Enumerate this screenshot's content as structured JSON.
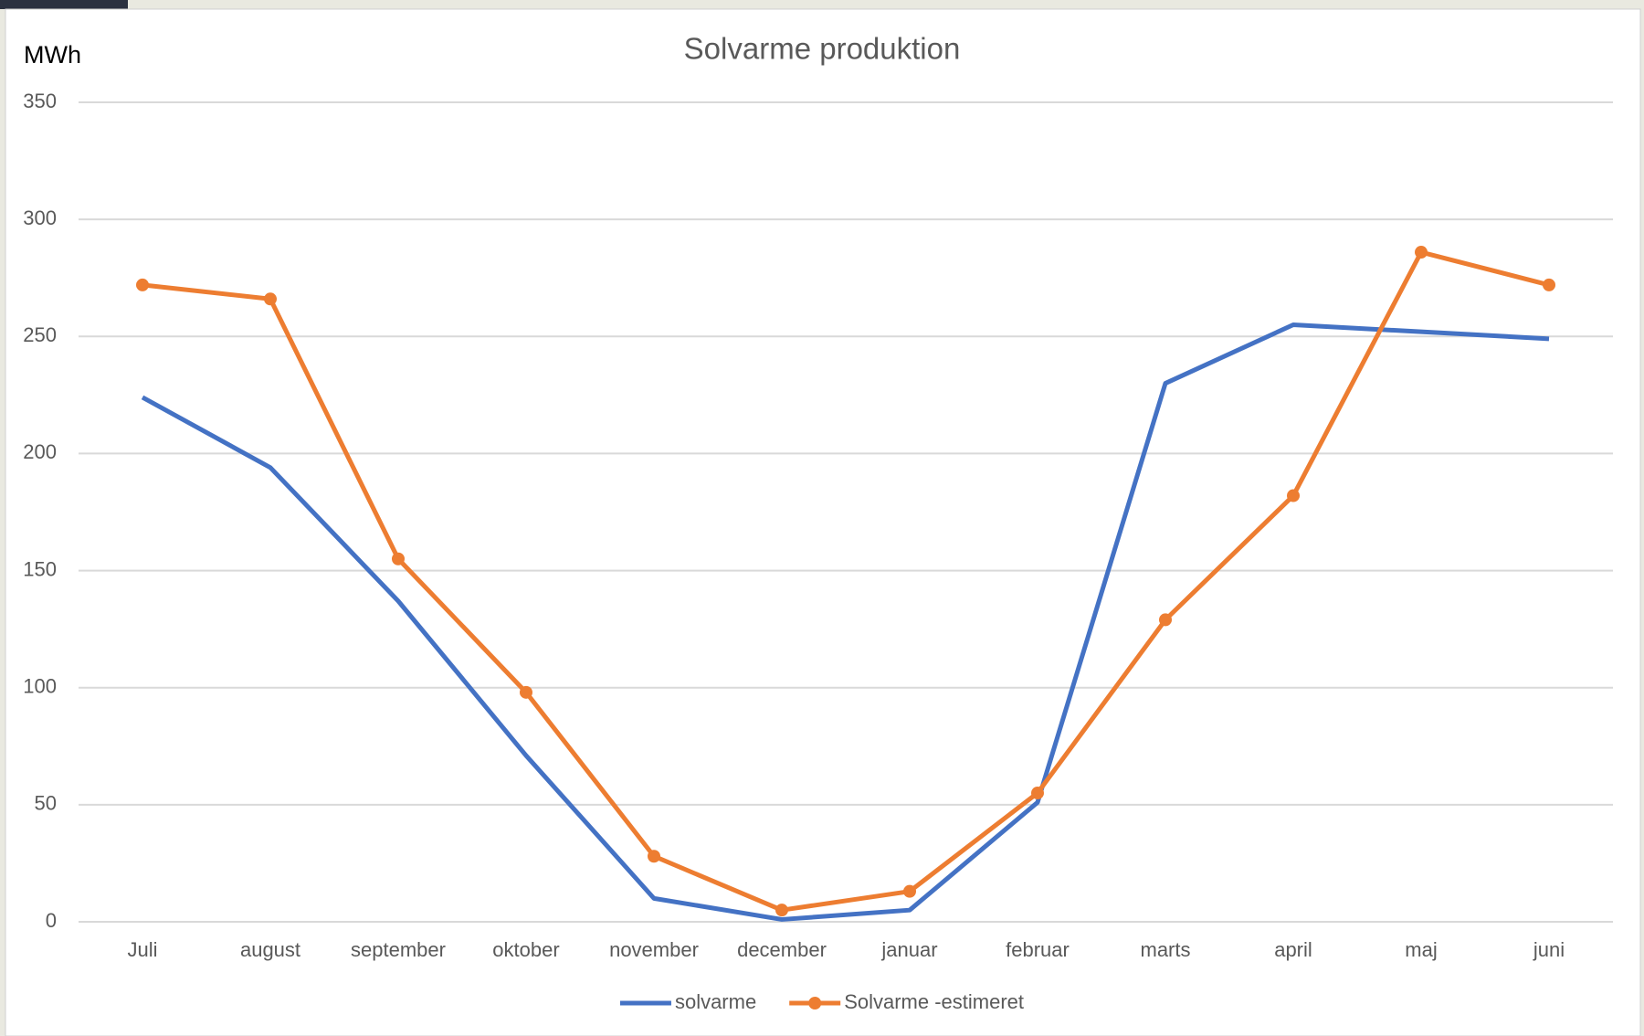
{
  "chart_data": {
    "type": "line",
    "title": "Solvarme produktion",
    "y_axis_label": "MWh",
    "categories": [
      "Juli",
      "august",
      "september",
      "oktober",
      "november",
      "december",
      "januar",
      "februar",
      "marts",
      "april",
      "maj",
      "juni"
    ],
    "series": [
      {
        "name": "solvarme",
        "color": "#4472c4",
        "marker": false,
        "values": [
          224,
          194,
          137,
          71,
          10,
          1,
          5,
          51,
          230,
          255,
          252,
          249
        ]
      },
      {
        "name": "Solvarme -estimeret",
        "color": "#ed7d31",
        "marker": true,
        "values": [
          272,
          266,
          155,
          98,
          28,
          5,
          13,
          55,
          129,
          182,
          286,
          272
        ]
      }
    ],
    "ylim": [
      0,
      350
    ],
    "yticks": [
      0,
      50,
      100,
      150,
      200,
      250,
      300,
      350
    ],
    "grid": true,
    "legend": "bottom"
  }
}
